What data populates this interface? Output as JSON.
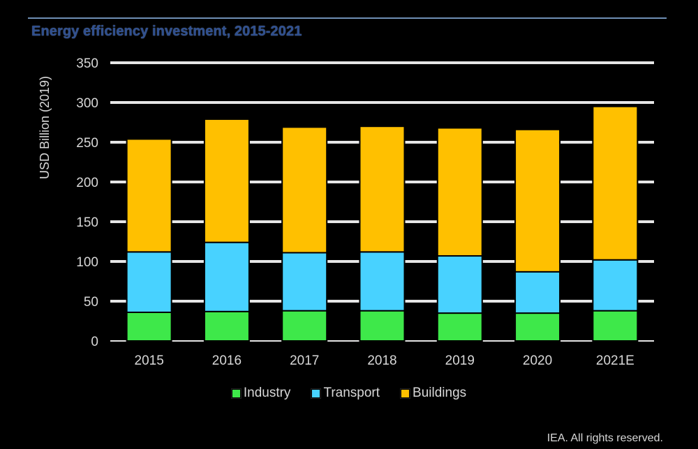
{
  "title": "Energy efficiency investment, 2015-2021",
  "credit": "IEA. All rights reserved.",
  "colors": {
    "Industry": "#3ee84a",
    "Transport": "#48d2ff",
    "Buildings": "#ffc000"
  },
  "chart_data": {
    "type": "bar",
    "stacked": true,
    "title": "Energy efficiency investment, 2015-2021",
    "ylabel": "USD Billion (2019)",
    "xlabel": "",
    "ylim": [
      0,
      350
    ],
    "yticks": [
      0,
      50,
      100,
      150,
      200,
      250,
      300,
      350
    ],
    "categories": [
      "2015",
      "2016",
      "2017",
      "2018",
      "2019",
      "2020",
      "2021E"
    ],
    "series": [
      {
        "name": "Industry",
        "values": [
          36,
          37,
          38,
          38,
          35,
          35,
          38
        ]
      },
      {
        "name": "Transport",
        "values": [
          76,
          87,
          73,
          74,
          72,
          52,
          64
        ]
      },
      {
        "name": "Buildings",
        "values": [
          142,
          155,
          158,
          158,
          161,
          179,
          193
        ]
      }
    ],
    "grid": true,
    "legend": "bottom"
  }
}
